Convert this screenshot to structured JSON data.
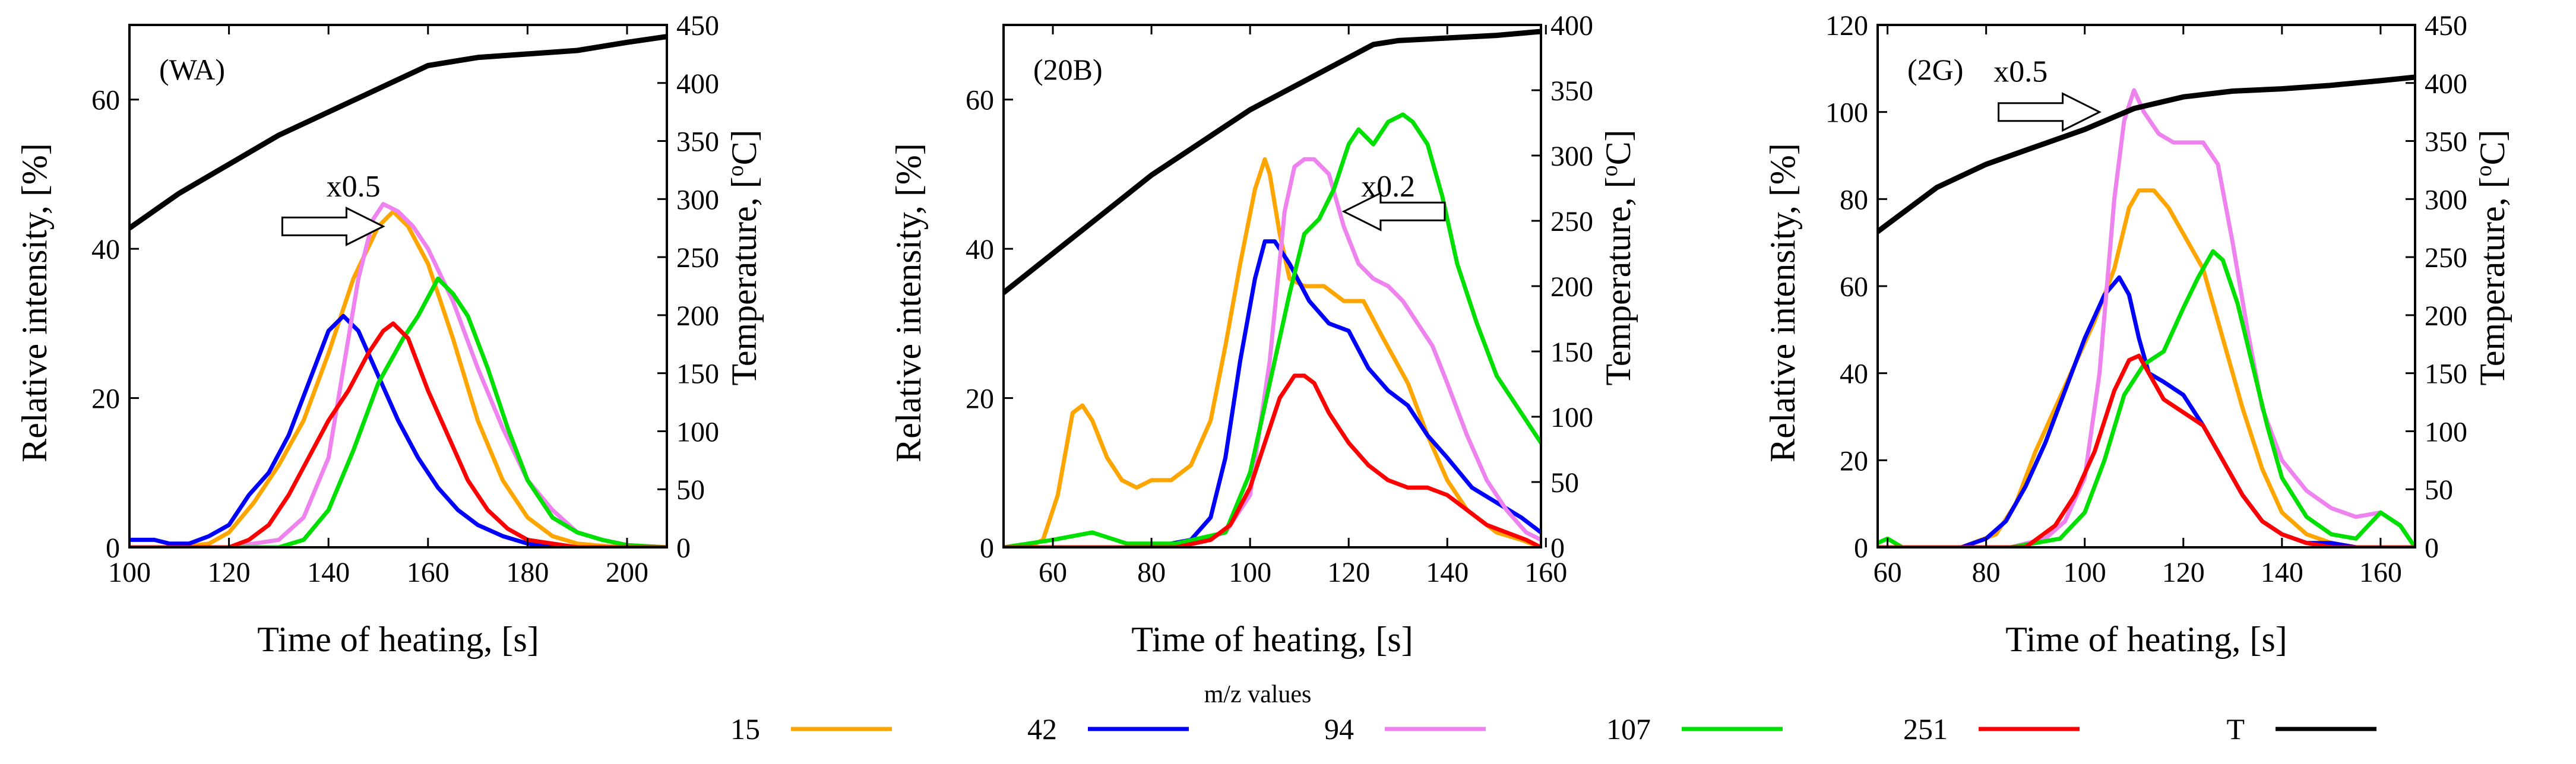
{
  "figure": {
    "legend": {
      "title": "m/z values",
      "entries": [
        {
          "label": "15",
          "color": "#FFA500"
        },
        {
          "label": "42",
          "color": "#0000FF"
        },
        {
          "label": "94",
          "color": "#EE82EE"
        },
        {
          "label": "107",
          "color": "#00E000"
        },
        {
          "label": "251",
          "color": "#FF0000"
        },
        {
          "label": "T",
          "color": "#000000"
        }
      ]
    }
  },
  "chart_data": [
    {
      "type": "line",
      "panel": "(WA)",
      "xlabel": "Time of heating, [s]",
      "ylabel": "Relative intensity, [%]",
      "y2label": "Temperature, [°C]",
      "y2label_parts": [
        "Temperature, [",
        "o",
        "C]"
      ],
      "xlim": [
        100,
        208
      ],
      "xticks": [
        100,
        120,
        140,
        160,
        180,
        200
      ],
      "ylim": [
        0,
        70
      ],
      "yticks": [
        0,
        20,
        40,
        60
      ],
      "y2lim": [
        0,
        450
      ],
      "y2ticks": [
        0,
        50,
        100,
        150,
        200,
        250,
        300,
        350,
        400,
        450
      ],
      "annotations": [
        {
          "text": "x0.5",
          "x_data": 145,
          "y_data": 47,
          "arrow": "right",
          "tip_x_data": 151,
          "tip_y_data": 43
        }
      ],
      "series": [
        {
          "name": "15",
          "color": "#FFA500",
          "x": [
            100,
            110,
            116,
            120,
            125,
            130,
            135,
            140,
            145,
            150,
            153,
            156,
            160,
            165,
            170,
            175,
            180,
            185,
            190,
            195,
            200,
            208
          ],
          "y": [
            0,
            0,
            0.5,
            2,
            6,
            11,
            17,
            26,
            36,
            43,
            45,
            43,
            38,
            28,
            17,
            9,
            4,
            1.5,
            0.5,
            0.2,
            0,
            0
          ]
        },
        {
          "name": "42",
          "color": "#0000FF",
          "x": [
            100,
            105,
            108,
            112,
            116,
            120,
            124,
            128,
            132,
            136,
            140,
            143,
            146,
            150,
            154,
            158,
            162,
            166,
            170,
            175,
            180,
            185,
            190,
            200,
            208
          ],
          "y": [
            1,
            1,
            0.5,
            0.5,
            1.5,
            3,
            7,
            10,
            15,
            22,
            29,
            31,
            29,
            23,
            17,
            12,
            8,
            5,
            3,
            1.5,
            0.5,
            0,
            0,
            0,
            0
          ]
        },
        {
          "name": "94",
          "color": "#EE82EE",
          "x": [
            100,
            120,
            130,
            135,
            140,
            143,
            146,
            149,
            151,
            154,
            157,
            160,
            165,
            170,
            175,
            180,
            185,
            190,
            195,
            200,
            208
          ],
          "y": [
            0,
            0,
            1,
            4,
            12,
            24,
            36,
            44,
            46,
            45,
            43,
            40,
            33,
            24,
            16,
            9,
            5,
            2,
            1,
            0.3,
            0
          ]
        },
        {
          "name": "107",
          "color": "#00E000",
          "x": [
            100,
            120,
            130,
            135,
            140,
            145,
            150,
            155,
            158,
            162,
            165,
            168,
            172,
            176,
            180,
            185,
            190,
            195,
            200,
            208
          ],
          "y": [
            0,
            0,
            0,
            1,
            5,
            13,
            22,
            28,
            31,
            36,
            34,
            31,
            24,
            16,
            9,
            4,
            2,
            1,
            0.3,
            0
          ]
        },
        {
          "name": "251",
          "color": "#FF0000",
          "x": [
            100,
            120,
            124,
            128,
            132,
            136,
            140,
            144,
            148,
            151,
            153,
            156,
            160,
            164,
            168,
            172,
            176,
            180,
            185,
            190,
            200,
            208
          ],
          "y": [
            0,
            0,
            1,
            3,
            7,
            12,
            17,
            21,
            26,
            29,
            30,
            28,
            21,
            15,
            9,
            5,
            2.5,
            1,
            0.5,
            0,
            0,
            0
          ]
        },
        {
          "name": "T",
          "color": "#000000",
          "axis": "right",
          "x": [
            100,
            110,
            120,
            130,
            140,
            150,
            160,
            170,
            180,
            190,
            200,
            208
          ],
          "y": [
            275,
            305,
            330,
            355,
            375,
            395,
            415,
            422,
            425,
            428,
            435,
            440
          ]
        }
      ]
    },
    {
      "type": "line",
      "panel": "(20B)",
      "xlabel": "Time of heating, [s]",
      "ylabel": "Relative intensity, [%]",
      "y2label": "Temperature, [°C]",
      "y2label_parts": [
        "Temperature, [",
        "o",
        "C]"
      ],
      "xlim": [
        50,
        159
      ],
      "xticks": [
        60,
        80,
        100,
        120,
        140,
        160
      ],
      "ylim": [
        0,
        70
      ],
      "yticks": [
        0,
        20,
        40,
        60
      ],
      "y2lim": [
        0,
        400
      ],
      "y2ticks": [
        0,
        50,
        100,
        150,
        200,
        250,
        300,
        350,
        400
      ],
      "annotations": [
        {
          "text": "x0.2",
          "x_data": 128,
          "y_data": 47,
          "arrow": "left",
          "tip_x_data": 119,
          "tip_y_data": 45
        }
      ],
      "series": [
        {
          "name": "15",
          "color": "#FFA500",
          "x": [
            50,
            55,
            58,
            61,
            64,
            66,
            68,
            71,
            74,
            77,
            80,
            84,
            88,
            92,
            95,
            98,
            101,
            103,
            104,
            106,
            108,
            111,
            115,
            119,
            123,
            127,
            132,
            136,
            140,
            144,
            150,
            155,
            159
          ],
          "y": [
            0,
            0,
            1,
            7,
            18,
            19,
            17,
            12,
            9,
            8,
            9,
            9,
            11,
            17,
            27,
            38,
            48,
            52,
            50,
            42,
            36,
            35,
            35,
            33,
            33,
            28,
            22,
            15,
            9,
            5,
            2,
            1,
            0
          ]
        },
        {
          "name": "42",
          "color": "#0000FF",
          "x": [
            50,
            70,
            80,
            88,
            92,
            95,
            98,
            101,
            103,
            105,
            108,
            112,
            116,
            120,
            124,
            128,
            132,
            136,
            140,
            145,
            150,
            155,
            159
          ],
          "y": [
            0,
            0,
            0,
            1,
            4,
            12,
            25,
            36,
            41,
            41,
            38,
            33,
            30,
            29,
            24,
            21,
            19,
            15,
            12,
            8,
            6,
            4,
            2
          ]
        },
        {
          "name": "94",
          "color": "#EE82EE",
          "x": [
            50,
            85,
            95,
            100,
            104,
            107,
            109,
            111,
            113,
            116,
            119,
            122,
            125,
            128,
            131,
            134,
            137,
            140,
            144,
            148,
            152,
            156,
            159
          ],
          "y": [
            0,
            0,
            2,
            7,
            25,
            45,
            51,
            52,
            52,
            50,
            43,
            38,
            36,
            35,
            33,
            30,
            27,
            22,
            15,
            9,
            5,
            2,
            1
          ]
        },
        {
          "name": "107",
          "color": "#00E000",
          "x": [
            50,
            60,
            68,
            75,
            85,
            95,
            100,
            104,
            108,
            111,
            114,
            117,
            120,
            122,
            125,
            128,
            131,
            133,
            136,
            139,
            142,
            146,
            150,
            155,
            159
          ],
          "y": [
            0,
            1,
            2,
            0.5,
            0.5,
            2,
            10,
            22,
            34,
            42,
            44,
            48,
            54,
            56,
            54,
            57,
            58,
            57,
            54,
            47,
            38,
            30,
            23,
            18,
            14
          ]
        },
        {
          "name": "251",
          "color": "#FF0000",
          "x": [
            50,
            85,
            92,
            96,
            100,
            103,
            106,
            109,
            111,
            113,
            116,
            120,
            124,
            128,
            132,
            136,
            140,
            144,
            148,
            152,
            156,
            159
          ],
          "y": [
            0,
            0,
            1,
            3,
            8,
            14,
            20,
            23,
            23,
            22,
            18,
            14,
            11,
            9,
            8,
            8,
            7,
            5,
            3,
            2,
            1,
            0
          ]
        },
        {
          "name": "T",
          "color": "#000000",
          "axis": "right",
          "x": [
            50,
            60,
            70,
            80,
            90,
            100,
            110,
            120,
            125,
            130,
            140,
            150,
            159
          ],
          "y": [
            195,
            225,
            255,
            285,
            310,
            335,
            355,
            375,
            385,
            388,
            390,
            392,
            395
          ]
        }
      ]
    },
    {
      "type": "line",
      "panel": "(2G)",
      "xlabel": "Time of heating, [s]",
      "ylabel": "Relative intensity, [%]",
      "y2label": "Temperature, [°C]",
      "y2label_parts": [
        "Temperature, [",
        "o",
        "C]"
      ],
      "xlim": [
        58,
        167
      ],
      "xticks": [
        60,
        80,
        100,
        120,
        140,
        160
      ],
      "ylim": [
        0,
        120
      ],
      "yticks": [
        0,
        20,
        40,
        60,
        80,
        100,
        120
      ],
      "y2lim": [
        0,
        450
      ],
      "y2ticks": [
        0,
        50,
        100,
        150,
        200,
        250,
        300,
        350,
        400,
        450
      ],
      "annotations": [
        {
          "text": "x0.5",
          "x_data": 87,
          "y_data": 107,
          "arrow": "right",
          "tip_x_data": 103,
          "tip_y_data": 100
        }
      ],
      "series": [
        {
          "name": "15",
          "color": "#FFA500",
          "x": [
            58,
            75,
            82,
            86,
            90,
            94,
            98,
            102,
            106,
            109,
            111,
            114,
            117,
            120,
            124,
            128,
            132,
            136,
            140,
            145,
            150,
            155,
            160,
            167
          ],
          "y": [
            0,
            0,
            3,
            10,
            22,
            32,
            42,
            52,
            64,
            78,
            82,
            82,
            78,
            72,
            64,
            48,
            32,
            18,
            8,
            3,
            1,
            0,
            0,
            0
          ]
        },
        {
          "name": "42",
          "color": "#0000FF",
          "x": [
            58,
            75,
            80,
            84,
            88,
            92,
            96,
            100,
            104,
            107,
            109,
            111,
            113,
            116,
            120,
            124,
            128,
            132,
            136,
            140,
            145,
            150,
            155,
            160
          ],
          "y": [
            0,
            0,
            2,
            6,
            14,
            24,
            36,
            48,
            58,
            62,
            58,
            48,
            40,
            38,
            35,
            28,
            20,
            12,
            6,
            3,
            1,
            1,
            0,
            0
          ]
        },
        {
          "name": "94",
          "color": "#EE82EE",
          "x": [
            58,
            85,
            92,
            96,
            100,
            103,
            106,
            108,
            110,
            112,
            115,
            118,
            121,
            124,
            127,
            130,
            133,
            136,
            140,
            145,
            150,
            155,
            160,
            164,
            167
          ],
          "y": [
            0,
            0,
            2,
            6,
            16,
            40,
            80,
            98,
            105,
            100,
            95,
            93,
            93,
            93,
            88,
            70,
            50,
            32,
            20,
            13,
            9,
            7,
            8,
            5,
            0
          ]
        },
        {
          "name": "107",
          "color": "#00E000",
          "x": [
            58,
            60,
            63,
            85,
            95,
            100,
            104,
            108,
            112,
            116,
            120,
            123,
            126,
            128,
            131,
            134,
            137,
            140,
            145,
            150,
            155,
            160,
            164,
            167
          ],
          "y": [
            1,
            2,
            0,
            0,
            2,
            8,
            20,
            35,
            42,
            45,
            55,
            62,
            68,
            66,
            56,
            42,
            28,
            16,
            7,
            3,
            2,
            8,
            5,
            0
          ]
        },
        {
          "name": "251",
          "color": "#FF0000",
          "x": [
            58,
            88,
            94,
            98,
            102,
            106,
            109,
            111,
            113,
            116,
            120,
            124,
            128,
            132,
            136,
            140,
            145,
            150,
            160,
            167
          ],
          "y": [
            0,
            0,
            5,
            12,
            22,
            36,
            43,
            44,
            40,
            34,
            31,
            28,
            20,
            12,
            6,
            3,
            1,
            0,
            0,
            0
          ]
        },
        {
          "name": "T",
          "color": "#000000",
          "axis": "right",
          "x": [
            58,
            70,
            80,
            90,
            100,
            110,
            120,
            130,
            140,
            150,
            160,
            167
          ],
          "y": [
            272,
            310,
            330,
            345,
            360,
            378,
            388,
            393,
            395,
            398,
            402,
            405
          ]
        }
      ]
    }
  ]
}
